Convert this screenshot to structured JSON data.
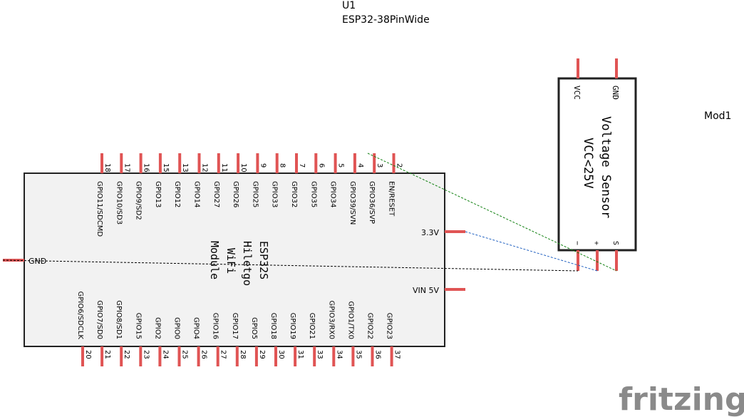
{
  "u1": {
    "ref": "U1",
    "part": "ESP32-38PinWide",
    "module_lines": [
      "ESP32S",
      "Hiletgo",
      "WiFi",
      "Module"
    ],
    "top_pins": [
      {
        "num": "18",
        "name": "GPIO11/SDCMD"
      },
      {
        "num": "17",
        "name": "GPIO10/SD3"
      },
      {
        "num": "16",
        "name": "GPIO9/SD2"
      },
      {
        "num": "15",
        "name": "GPIO13"
      },
      {
        "num": "13",
        "name": "GPIO12"
      },
      {
        "num": "12",
        "name": "GPIO14"
      },
      {
        "num": "11",
        "name": "GPIO27"
      },
      {
        "num": "10",
        "name": "GPIO26"
      },
      {
        "num": "9",
        "name": "GPIO25"
      },
      {
        "num": "8",
        "name": "GPIO33"
      },
      {
        "num": "7",
        "name": "GPIO32"
      },
      {
        "num": "6",
        "name": "GPIO35"
      },
      {
        "num": "5",
        "name": "GPIO34"
      },
      {
        "num": "4",
        "name": "GPIO39/SVN"
      },
      {
        "num": "3",
        "name": "GPIO36/SVP"
      },
      {
        "num": "2",
        "name": "EN/RESET"
      }
    ],
    "bottom_pins": [
      {
        "num": "20",
        "name": "GPIO6/SDCLK"
      },
      {
        "num": "21",
        "name": "GPIO7/SD0"
      },
      {
        "num": "22",
        "name": "GPIO8/SD1"
      },
      {
        "num": "23",
        "name": "GPIO15"
      },
      {
        "num": "24",
        "name": "GPIO2"
      },
      {
        "num": "25",
        "name": "GPIO0"
      },
      {
        "num": "26",
        "name": "GPIO4"
      },
      {
        "num": "27",
        "name": "GPIO16"
      },
      {
        "num": "28",
        "name": "GPIO17"
      },
      {
        "num": "29",
        "name": "GPIO5"
      },
      {
        "num": "30",
        "name": "GPIO18"
      },
      {
        "num": "31",
        "name": "GPIO19"
      },
      {
        "num": "33",
        "name": "GPIO21"
      },
      {
        "num": "34",
        "name": "GPIO3/RX0"
      },
      {
        "num": "35",
        "name": "GPIO1/TX0"
      },
      {
        "num": "36",
        "name": "GPIO22"
      },
      {
        "num": "37",
        "name": "GPIO23"
      }
    ],
    "left_pin": "GND",
    "right_pins": [
      "3.3V",
      "VIN 5V"
    ]
  },
  "mod1": {
    "ref": "Mod1",
    "title": "Voltage Sensor",
    "subtitle": "VCC<25V",
    "top_pins": [
      "VCC",
      "GND"
    ],
    "bottom_pins": [
      "−",
      "+",
      "S"
    ]
  },
  "wires": [
    {
      "from": "GND",
      "to": "−",
      "color": "#000000"
    },
    {
      "from": "3.3V",
      "to": "+",
      "color": "#2060c0"
    },
    {
      "from": "GPIO36/SVP",
      "to": "S",
      "color": "#108010"
    }
  ],
  "brand": "fritzing",
  "colors": {
    "pin": "#e05454",
    "outline": "#222222",
    "logo": "#8a8a8a"
  }
}
